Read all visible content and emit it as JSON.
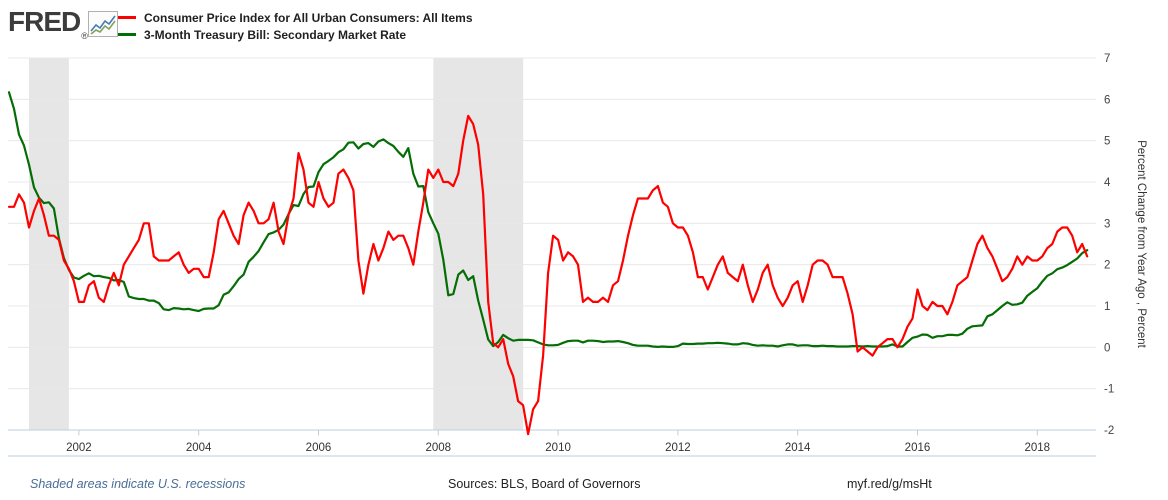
{
  "header": {
    "logo": "FRED",
    "registered": "®",
    "legend": [
      {
        "label": "Consumer Price Index for All Urban Consumers: All Items",
        "color": "#fe0000"
      },
      {
        "label": "3-Month Treasury Bill: Secondary Market Rate",
        "color": "#046d05"
      }
    ]
  },
  "chart_data": {
    "type": "line",
    "x_start": "2000-11",
    "frequency": "monthly",
    "xlabel": "",
    "ylabel_right": "Percent Change from Year Ago , Percent",
    "x_ticks": [
      2002,
      2004,
      2006,
      2008,
      2010,
      2012,
      2014,
      2016,
      2018
    ],
    "y_ticks": [
      7,
      6,
      5,
      4,
      3,
      2,
      1,
      0,
      -1,
      -2
    ],
    "ylim": [
      -2,
      7
    ],
    "grid": "horizontal",
    "legend_position": "top-left",
    "recession_bands": [
      {
        "start": 2001.167,
        "end": 2001.833
      },
      {
        "start": 2007.917,
        "end": 2009.417
      }
    ],
    "series": [
      {
        "name": "Consumer Price Index for All Urban Consumers: All Items",
        "color": "#fe0000",
        "values": [
          3.4,
          3.4,
          3.7,
          3.5,
          2.9,
          3.3,
          3.6,
          3.2,
          2.7,
          2.7,
          2.6,
          2.1,
          1.9,
          1.6,
          1.1,
          1.1,
          1.5,
          1.6,
          1.2,
          1.1,
          1.5,
          1.8,
          1.5,
          2.0,
          2.2,
          2.4,
          2.6,
          3.0,
          3.0,
          2.2,
          2.1,
          2.1,
          2.1,
          2.2,
          2.3,
          2.0,
          1.8,
          1.9,
          1.9,
          1.7,
          1.7,
          2.3,
          3.1,
          3.3,
          3.0,
          2.7,
          2.5,
          3.2,
          3.5,
          3.3,
          3.0,
          3.0,
          3.1,
          3.5,
          2.8,
          2.5,
          3.2,
          3.6,
          4.7,
          4.3,
          3.5,
          3.4,
          4.0,
          3.6,
          3.4,
          3.5,
          4.2,
          4.3,
          4.1,
          3.8,
          2.1,
          1.3,
          2.0,
          2.5,
          2.1,
          2.4,
          2.8,
          2.6,
          2.7,
          2.7,
          2.4,
          2.0,
          2.8,
          3.5,
          4.3,
          4.1,
          4.3,
          4.0,
          4.0,
          3.9,
          4.2,
          5.0,
          5.6,
          5.4,
          4.9,
          3.7,
          1.1,
          0.1,
          0.0,
          0.2,
          -0.4,
          -0.7,
          -1.3,
          -1.4,
          -2.1,
          -1.5,
          -1.3,
          -0.2,
          1.8,
          2.7,
          2.6,
          2.1,
          2.3,
          2.2,
          2.0,
          1.1,
          1.2,
          1.1,
          1.1,
          1.2,
          1.1,
          1.5,
          1.6,
          2.1,
          2.7,
          3.2,
          3.6,
          3.6,
          3.6,
          3.8,
          3.9,
          3.5,
          3.4,
          3.0,
          2.9,
          2.9,
          2.7,
          2.3,
          1.7,
          1.7,
          1.4,
          1.7,
          2.0,
          2.2,
          1.8,
          1.7,
          1.6,
          2.0,
          1.5,
          1.1,
          1.4,
          1.8,
          2.0,
          1.5,
          1.2,
          1.0,
          1.2,
          1.5,
          1.6,
          1.1,
          1.5,
          2.0,
          2.1,
          2.1,
          2.0,
          1.7,
          1.7,
          1.7,
          1.3,
          0.8,
          -0.1,
          0.0,
          -0.1,
          -0.2,
          0.0,
          0.1,
          0.2,
          0.2,
          0.0,
          0.2,
          0.5,
          0.7,
          1.4,
          1.0,
          0.9,
          1.1,
          1.0,
          1.0,
          0.8,
          1.1,
          1.5,
          1.6,
          1.7,
          2.1,
          2.5,
          2.7,
          2.4,
          2.2,
          1.9,
          1.6,
          1.7,
          1.9,
          2.2,
          2.0,
          2.2,
          2.1,
          2.1,
          2.2,
          2.4,
          2.5,
          2.8,
          2.9,
          2.9,
          2.7,
          2.3,
          2.5,
          2.2
        ]
      },
      {
        "name": "3-Month Treasury Bill: Secondary Market Rate",
        "color": "#046d05",
        "values": [
          6.17,
          5.77,
          5.15,
          4.88,
          4.42,
          3.87,
          3.62,
          3.49,
          3.51,
          3.36,
          2.64,
          2.16,
          1.87,
          1.69,
          1.65,
          1.73,
          1.79,
          1.72,
          1.73,
          1.7,
          1.68,
          1.62,
          1.63,
          1.58,
          1.23,
          1.19,
          1.17,
          1.17,
          1.13,
          1.13,
          1.07,
          0.92,
          0.9,
          0.95,
          0.94,
          0.92,
          0.93,
          0.9,
          0.88,
          0.93,
          0.94,
          0.94,
          1.02,
          1.27,
          1.33,
          1.48,
          1.65,
          1.76,
          2.07,
          2.19,
          2.33,
          2.54,
          2.74,
          2.78,
          2.84,
          2.97,
          3.22,
          3.44,
          3.42,
          3.71,
          3.88,
          3.89,
          4.24,
          4.43,
          4.51,
          4.6,
          4.72,
          4.79,
          4.95,
          4.96,
          4.81,
          4.92,
          4.94,
          4.85,
          4.98,
          5.03,
          4.94,
          4.87,
          4.73,
          4.61,
          4.82,
          4.2,
          3.89,
          3.9,
          3.27,
          3.0,
          2.75,
          2.12,
          1.26,
          1.29,
          1.76,
          1.86,
          1.63,
          1.72,
          1.13,
          0.67,
          0.19,
          0.03,
          0.13,
          0.3,
          0.22,
          0.16,
          0.18,
          0.18,
          0.18,
          0.17,
          0.12,
          0.07,
          0.05,
          0.05,
          0.06,
          0.11,
          0.15,
          0.16,
          0.16,
          0.12,
          0.16,
          0.16,
          0.15,
          0.13,
          0.14,
          0.14,
          0.15,
          0.13,
          0.1,
          0.06,
          0.04,
          0.04,
          0.04,
          0.02,
          0.01,
          0.02,
          0.01,
          0.01,
          0.03,
          0.09,
          0.08,
          0.08,
          0.09,
          0.09,
          0.1,
          0.1,
          0.11,
          0.1,
          0.09,
          0.07,
          0.07,
          0.1,
          0.09,
          0.06,
          0.04,
          0.05,
          0.04,
          0.04,
          0.02,
          0.05,
          0.07,
          0.07,
          0.04,
          0.05,
          0.05,
          0.03,
          0.03,
          0.04,
          0.03,
          0.03,
          0.02,
          0.02,
          0.02,
          0.03,
          0.03,
          0.02,
          0.03,
          0.02,
          0.02,
          0.02,
          0.03,
          0.07,
          0.02,
          0.02,
          0.13,
          0.23,
          0.26,
          0.31,
          0.3,
          0.23,
          0.27,
          0.27,
          0.3,
          0.3,
          0.29,
          0.33,
          0.45,
          0.51,
          0.52,
          0.53,
          0.75,
          0.8,
          0.9,
          1.0,
          1.09,
          1.03,
          1.04,
          1.08,
          1.25,
          1.34,
          1.43,
          1.59,
          1.73,
          1.79,
          1.89,
          1.93,
          1.99,
          2.07,
          2.15,
          2.28,
          2.35
        ]
      }
    ]
  },
  "footer": {
    "note": "Shaded areas indicate U.S. recessions",
    "sources": "Sources: BLS, Board of Governors",
    "link": "myf.red/g/msHt"
  },
  "colors": {
    "grid": "#e8e8e8",
    "axis": "#bccee0",
    "band": "#e6e6e6",
    "tick_label": "#444444",
    "logo": "#3c3c3c"
  }
}
